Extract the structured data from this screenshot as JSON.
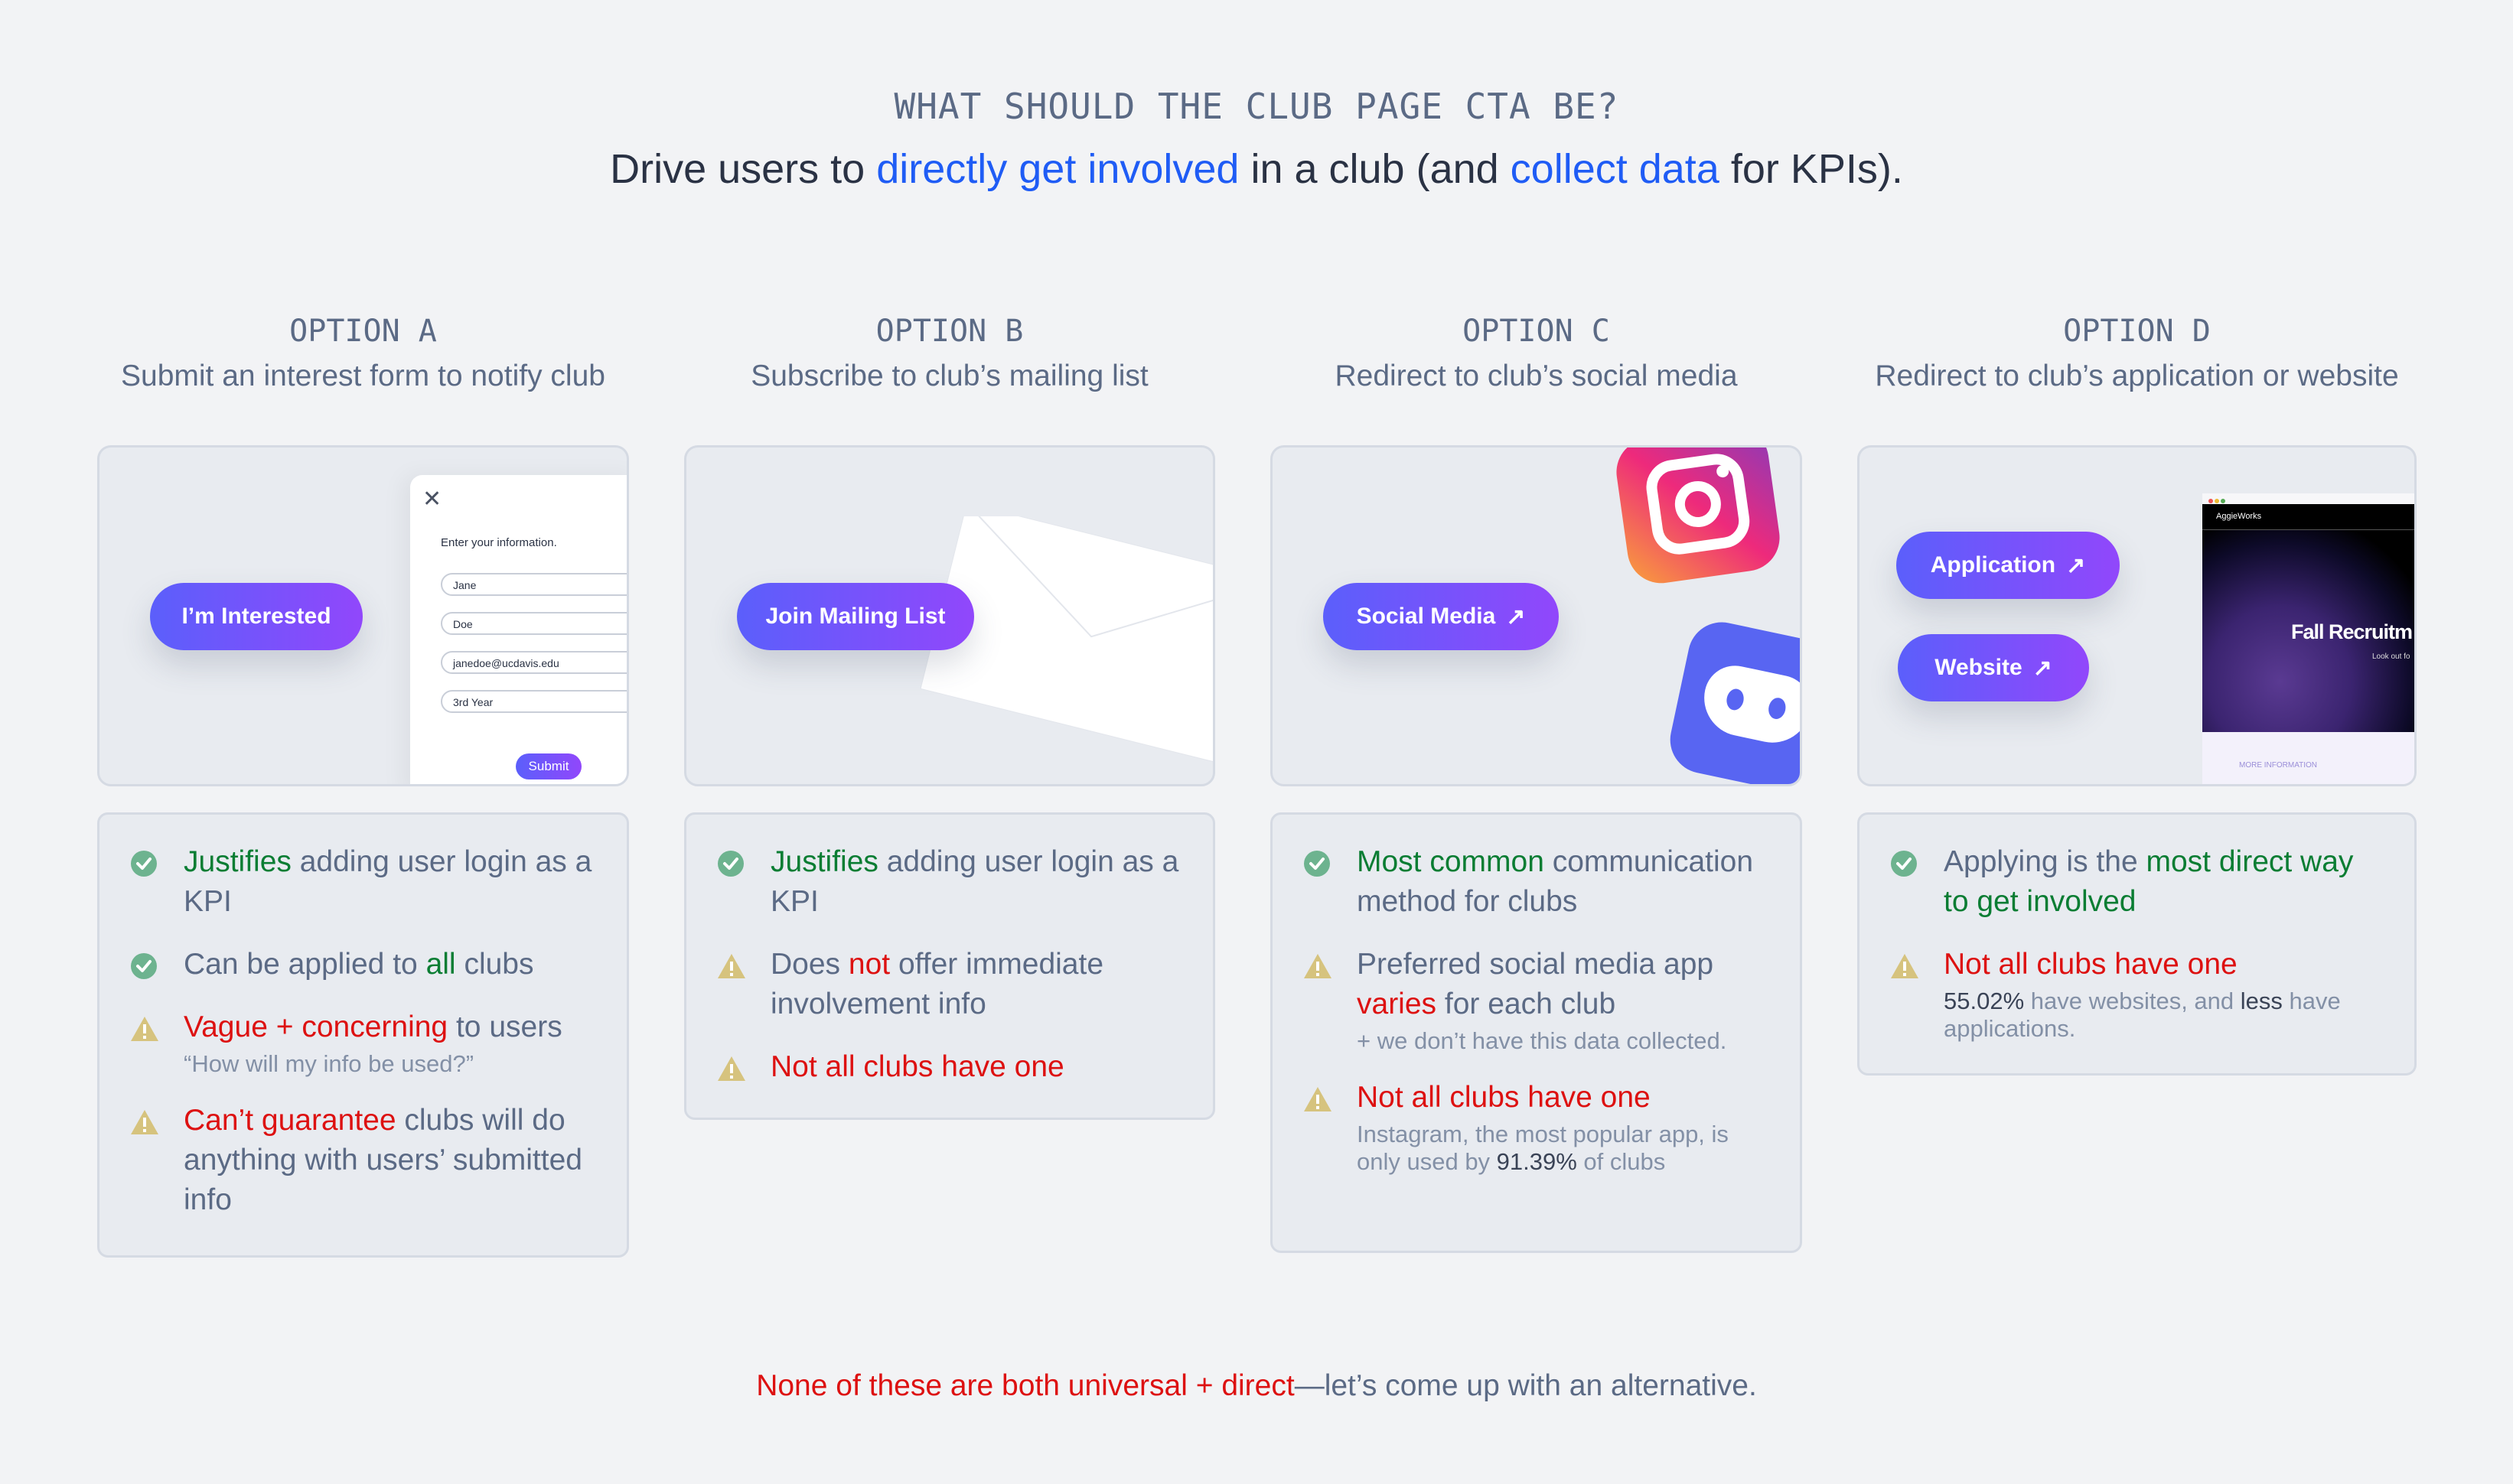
{
  "header": {
    "question": "WHAT SHOULD THE CLUB PAGE CTA BE?",
    "headline": [
      {
        "t": "Drive users to ",
        "c": ""
      },
      {
        "t": "directly get involved",
        "c": "blue"
      },
      {
        "t": " in a club (and ",
        "c": ""
      },
      {
        "t": "collect data",
        "c": "blue"
      },
      {
        "t": " for KPIs).",
        "c": ""
      }
    ]
  },
  "options": [
    {
      "label": "OPTION A",
      "subtitle": "Submit an interest form to notify club",
      "mock": {
        "button": "I’m Interested",
        "form_title": "Enter your information.",
        "fields": [
          "Jane",
          "Doe",
          "janedoe@ucdavis.edu",
          "3rd Year"
        ],
        "submit": "Submit"
      },
      "bullets": [
        {
          "icon": "check",
          "parts": [
            {
              "t": "Justifies",
              "c": "green"
            },
            {
              "t": " adding user login as a KPI",
              "c": ""
            }
          ]
        },
        {
          "icon": "check",
          "parts": [
            {
              "t": "Can be applied to ",
              "c": ""
            },
            {
              "t": "all",
              "c": "green"
            },
            {
              "t": " clubs",
              "c": ""
            }
          ]
        },
        {
          "icon": "warning",
          "parts": [
            {
              "t": "Vague + concerning",
              "c": "red"
            },
            {
              "t": " to users",
              "c": ""
            }
          ],
          "sub": [
            {
              "t": "“How will my info be used?”",
              "c": ""
            }
          ]
        },
        {
          "icon": "warning",
          "parts": [
            {
              "t": "Can’t guarantee",
              "c": "red"
            },
            {
              "t": " clubs will do anything with users’ submitted info",
              "c": ""
            }
          ]
        }
      ]
    },
    {
      "label": "OPTION B",
      "subtitle": "Subscribe to club’s mailing list",
      "mock": {
        "button": "Join Mailing List"
      },
      "bullets": [
        {
          "icon": "check",
          "parts": [
            {
              "t": "Justifies",
              "c": "green"
            },
            {
              "t": " adding user login as a KPI",
              "c": ""
            }
          ]
        },
        {
          "icon": "warning",
          "parts": [
            {
              "t": "Does ",
              "c": ""
            },
            {
              "t": "not",
              "c": "red"
            },
            {
              "t": " offer immediate involvement info",
              "c": ""
            }
          ]
        },
        {
          "icon": "warning",
          "parts": [
            {
              "t": "Not all clubs have one",
              "c": "red"
            }
          ]
        }
      ]
    },
    {
      "label": "OPTION C",
      "subtitle": "Redirect to club’s social media",
      "mock": {
        "button": "Social Media"
      },
      "bullets": [
        {
          "icon": "check",
          "parts": [
            {
              "t": "Most common",
              "c": "green"
            },
            {
              "t": " communication method for clubs",
              "c": ""
            }
          ]
        },
        {
          "icon": "warning",
          "parts": [
            {
              "t": "Preferred social media app ",
              "c": ""
            },
            {
              "t": "varies",
              "c": "red"
            },
            {
              "t": " for each club",
              "c": ""
            }
          ],
          "sub": [
            {
              "t": "+ we don’t have this data collected.",
              "c": ""
            }
          ]
        },
        {
          "icon": "warning",
          "parts": [
            {
              "t": "Not all clubs have one",
              "c": "red"
            }
          ],
          "sub": [
            {
              "t": "Instagram, the most popular app, is only used by ",
              "c": ""
            },
            {
              "t": "91.39%",
              "c": "dark"
            },
            {
              "t": " of clubs",
              "c": ""
            }
          ]
        }
      ]
    },
    {
      "label": "OPTION D",
      "subtitle": "Redirect to club’s application or website",
      "mock": {
        "buttons": [
          "Application",
          "Website"
        ],
        "site_brand": "AggieWorks",
        "site_hero": "Fall Recruitm",
        "site_sub": "Look out fo",
        "site_link": "MORE INFORMATION"
      },
      "bullets": [
        {
          "icon": "check",
          "parts": [
            {
              "t": "Applying is the ",
              "c": ""
            },
            {
              "t": "most direct way to get involved",
              "c": "green"
            }
          ]
        },
        {
          "icon": "warning",
          "parts": [
            {
              "t": "Not all clubs have one",
              "c": "red"
            }
          ],
          "sub": [
            {
              "t": "55.02%",
              "c": "dark"
            },
            {
              "t": " have websites, and ",
              "c": ""
            },
            {
              "t": "less",
              "c": "dark"
            },
            {
              "t": " have applications.",
              "c": ""
            }
          ]
        }
      ]
    }
  ],
  "footer": [
    {
      "t": "None of these are both universal + direct",
      "c": "red"
    },
    {
      "t": "—let’s come up with an alternative.",
      "c": ""
    }
  ],
  "colors": {
    "accent_blue": "#1f5cf5",
    "positive": "#0a7d33",
    "negative": "#dd1111",
    "check_icon": "#6db38f",
    "warning_icon": "#d6c37e",
    "button_gradient": [
      "#5b5ffb",
      "#9147fb"
    ]
  }
}
